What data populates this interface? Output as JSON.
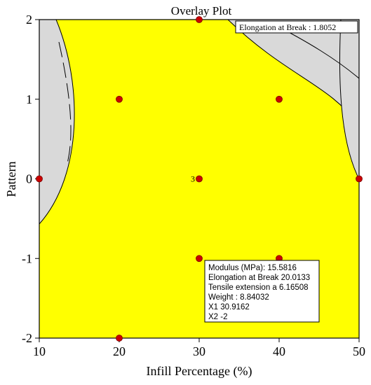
{
  "chart_data": {
    "type": "scatter",
    "title": "Overlay Plot",
    "xlabel": "Infill Percentage (%)",
    "ylabel": "Pattern",
    "xlim": [
      10,
      50
    ],
    "ylim": [
      -2,
      2
    ],
    "x_ticks": [
      "10",
      "20",
      "30",
      "40",
      "50"
    ],
    "y_ticks": [
      "-2",
      "-1",
      "0",
      "1",
      "2"
    ],
    "region_colors": {
      "feasible": "#ffff00",
      "infeasible": "#d9d9d9",
      "points": "#cc0000"
    },
    "points": [
      {
        "x": 10,
        "y": 0
      },
      {
        "x": 20,
        "y": 1
      },
      {
        "x": 20,
        "y": -2
      },
      {
        "x": 30,
        "y": 2
      },
      {
        "x": 30,
        "y": 0,
        "label": "3"
      },
      {
        "x": 30,
        "y": -1
      },
      {
        "x": 40,
        "y": 1
      },
      {
        "x": 40,
        "y": -1
      },
      {
        "x": 50,
        "y": 0
      }
    ],
    "contour_label": "Elongation at Break : 1.8052",
    "annotation_box": {
      "lines": [
        "Modulus (MPa):   15.5816",
        "Elongation at Break   20.0133",
        "Tensile extension a  6.16508",
        "Weight :    8.84032",
        "X1  30.9162",
        "X2  -2"
      ]
    }
  }
}
